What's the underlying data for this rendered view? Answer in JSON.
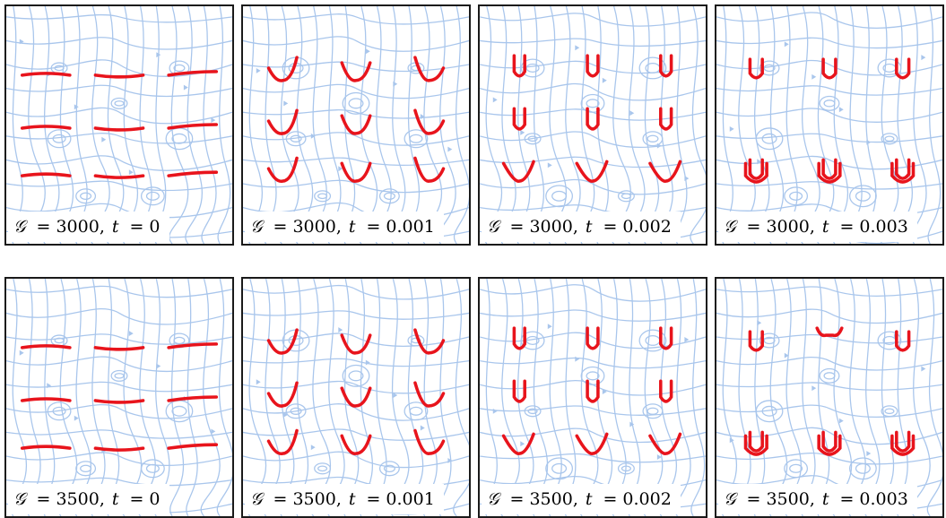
{
  "figure": {
    "rows": [
      {
        "G": "3000",
        "panels": [
          {
            "t": "0",
            "shape": "flat"
          },
          {
            "t": "0.001",
            "shape": "cup"
          },
          {
            "t": "0.002",
            "shape": "u"
          },
          {
            "t": "0.003",
            "shape": "uu"
          }
        ]
      },
      {
        "G": "3500",
        "panels": [
          {
            "t": "0",
            "shape": "flat"
          },
          {
            "t": "0.001",
            "shape": "cup"
          },
          {
            "t": "0.002",
            "shape": "u"
          },
          {
            "t": "0.003",
            "shape": "uu"
          }
        ]
      }
    ],
    "colors": {
      "streamline": "#a9c6ec",
      "body": "#e8141c",
      "frame": "#1a1a1a"
    }
  }
}
